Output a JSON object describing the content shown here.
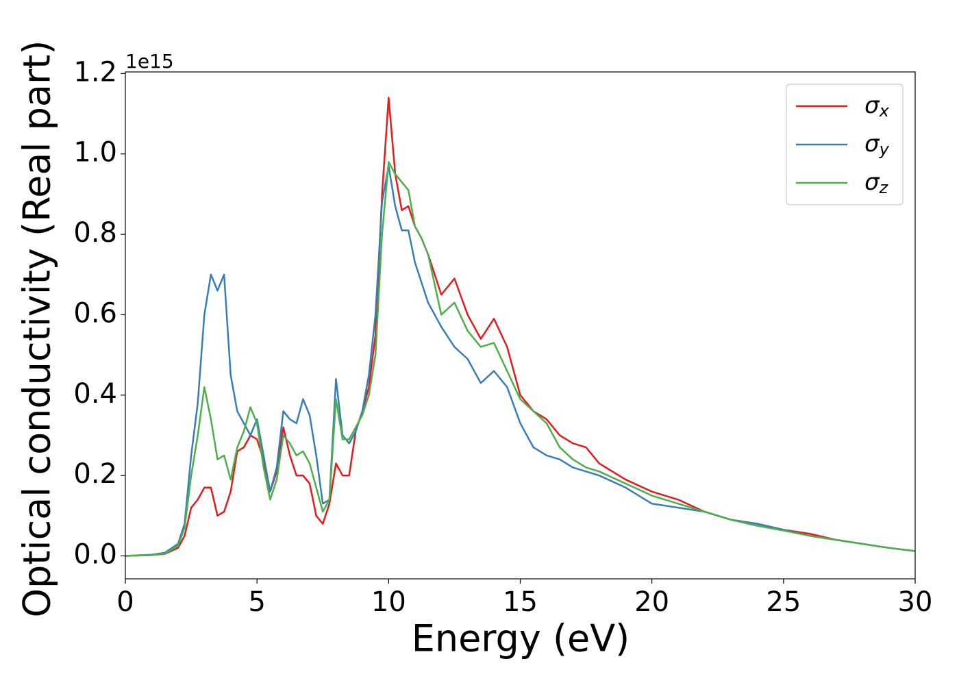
{
  "chart_data": {
    "type": "line",
    "xlabel": "Energy (eV)",
    "ylabel": "Optical conductivity (Real part)",
    "y_offset_label": "1e15",
    "x": [
      0,
      1,
      1.5,
      2,
      2.25,
      2.5,
      2.75,
      3,
      3.25,
      3.5,
      3.75,
      4,
      4.25,
      4.5,
      4.75,
      5,
      5.25,
      5.5,
      5.75,
      6,
      6.25,
      6.5,
      6.75,
      7,
      7.25,
      7.5,
      7.75,
      8,
      8.25,
      8.5,
      8.75,
      9,
      9.25,
      9.5,
      9.75,
      10,
      10.25,
      10.5,
      10.75,
      11,
      11.25,
      11.5,
      12,
      12.5,
      13,
      13.5,
      14,
      14.5,
      15,
      15.5,
      16,
      16.5,
      17,
      17.5,
      18,
      19,
      20,
      21,
      22,
      23,
      24,
      25,
      26,
      27,
      28,
      29,
      30
    ],
    "series": [
      {
        "name": "σx",
        "color": "#e41a1c",
        "values": [
          0,
          0.002,
          0.005,
          0.02,
          0.05,
          0.12,
          0.14,
          0.17,
          0.17,
          0.1,
          0.11,
          0.16,
          0.26,
          0.27,
          0.3,
          0.29,
          0.24,
          0.16,
          0.21,
          0.32,
          0.25,
          0.2,
          0.2,
          0.18,
          0.1,
          0.08,
          0.13,
          0.23,
          0.2,
          0.2,
          0.31,
          0.36,
          0.42,
          0.55,
          0.9,
          1.14,
          0.95,
          0.86,
          0.87,
          0.82,
          0.79,
          0.75,
          0.65,
          0.69,
          0.6,
          0.54,
          0.59,
          0.52,
          0.4,
          0.36,
          0.34,
          0.3,
          0.28,
          0.27,
          0.23,
          0.19,
          0.16,
          0.14,
          0.11,
          0.09,
          0.08,
          0.065,
          0.055,
          0.04,
          0.03,
          0.02,
          0.012
        ]
      },
      {
        "name": "σy",
        "color": "#377eb8",
        "values": [
          0,
          0.003,
          0.008,
          0.03,
          0.08,
          0.25,
          0.38,
          0.6,
          0.7,
          0.66,
          0.7,
          0.45,
          0.36,
          0.33,
          0.3,
          0.34,
          0.25,
          0.16,
          0.22,
          0.36,
          0.34,
          0.33,
          0.39,
          0.35,
          0.25,
          0.13,
          0.14,
          0.44,
          0.3,
          0.28,
          0.31,
          0.36,
          0.45,
          0.6,
          0.88,
          0.97,
          0.87,
          0.81,
          0.81,
          0.73,
          0.68,
          0.63,
          0.57,
          0.52,
          0.49,
          0.43,
          0.46,
          0.42,
          0.33,
          0.27,
          0.25,
          0.24,
          0.22,
          0.21,
          0.2,
          0.17,
          0.13,
          0.12,
          0.11,
          0.09,
          0.08,
          0.065,
          0.05,
          0.04,
          0.03,
          0.02,
          0.012
        ]
      },
      {
        "name": "σz",
        "color": "#4daf4a",
        "values": [
          0,
          0.002,
          0.006,
          0.025,
          0.07,
          0.2,
          0.3,
          0.42,
          0.34,
          0.24,
          0.25,
          0.19,
          0.27,
          0.31,
          0.37,
          0.33,
          0.22,
          0.14,
          0.19,
          0.3,
          0.28,
          0.25,
          0.26,
          0.23,
          0.17,
          0.11,
          0.14,
          0.39,
          0.29,
          0.29,
          0.32,
          0.35,
          0.4,
          0.5,
          0.8,
          0.98,
          0.95,
          0.93,
          0.91,
          0.82,
          0.79,
          0.75,
          0.6,
          0.63,
          0.56,
          0.52,
          0.53,
          0.46,
          0.39,
          0.36,
          0.33,
          0.27,
          0.24,
          0.22,
          0.21,
          0.18,
          0.15,
          0.13,
          0.11,
          0.09,
          0.075,
          0.063,
          0.05,
          0.04,
          0.03,
          0.02,
          0.012
        ]
      }
    ],
    "xlim": [
      0,
      30
    ],
    "xticks": [
      0,
      5,
      10,
      15,
      20,
      25,
      30
    ],
    "ylim": [
      -0.057,
      1.204
    ],
    "yticks": [
      {
        "value": 0,
        "label": "0.0"
      },
      0.2,
      0.4,
      0.6,
      0.8,
      {
        "value": 1,
        "label": "1.0"
      },
      1.2
    ],
    "grid": false,
    "legend_loc": "upper right"
  }
}
